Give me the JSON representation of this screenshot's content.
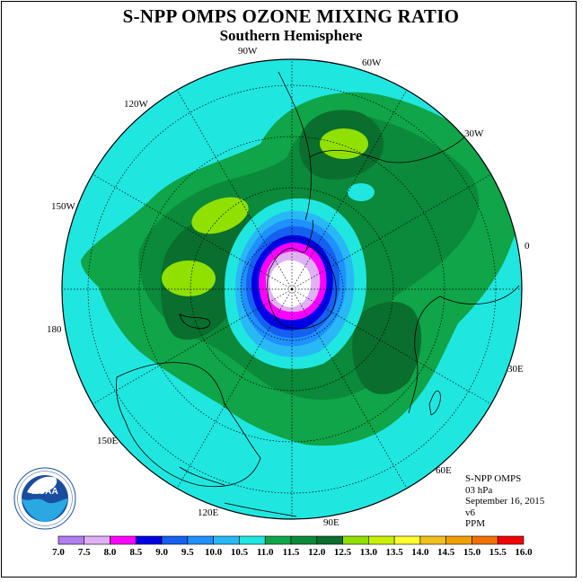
{
  "title": "S-NPP OMPS OZONE MIXING RATIO",
  "subtitle": "Southern Hemisphere",
  "longitude_labels": {
    "w90": "90W",
    "w60": "60W",
    "w30": "30W",
    "w120": "120W",
    "w150": "150W",
    "deg0": "0",
    "deg180": "180",
    "e30": "30E",
    "e60": "60E",
    "e90": "90E",
    "e120": "120E",
    "e150": "150E"
  },
  "info": {
    "instrument": "S-NPP OMPS",
    "level": "03 hPa",
    "date": "September 16, 2015",
    "version": "v6",
    "units": "PPM"
  },
  "logo": {
    "text": "NOAA",
    "ring_text": "NATIONAL OCEANIC AND ATMOSPHERIC ADMINISTRATION · U.S. DEPARTMENT OF COMMERCE"
  },
  "colorbar": {
    "labels": [
      "7.0",
      "7.5",
      "8.0",
      "8.5",
      "9.0",
      "9.5",
      "10.0",
      "10.5",
      "11.0",
      "11.5",
      "12.0",
      "12.5",
      "13.0",
      "13.5",
      "14.0",
      "14.5",
      "15.0",
      "15.5",
      "16.0"
    ],
    "colors": [
      "#b07ef0",
      "#e0b0f5",
      "#ff00ff",
      "#0000e6",
      "#1560f0",
      "#1e90ff",
      "#28b8f5",
      "#20e6e0",
      "#0fa548",
      "#0a8a3a",
      "#0a6e2e",
      "#90e000",
      "#c8f000",
      "#ffff30",
      "#f0c020",
      "#f0a000",
      "#f07000",
      "#f00000",
      "#8b5a3c"
    ]
  }
}
